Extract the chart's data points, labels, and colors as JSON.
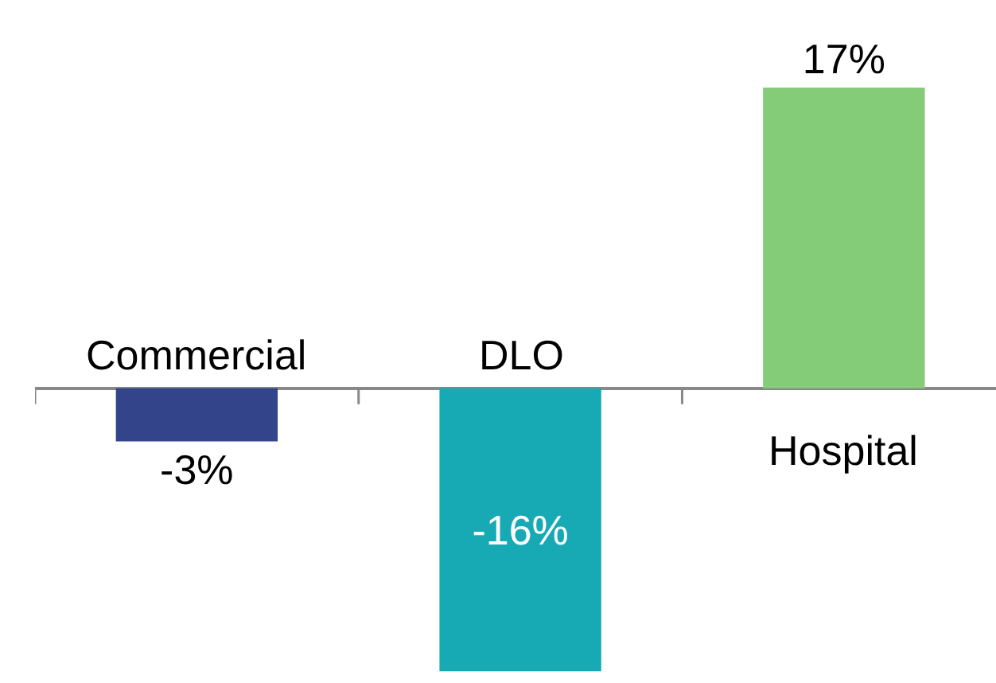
{
  "chart_data": {
    "type": "bar",
    "categories": [
      "Commercial",
      "DLO",
      "Hospital"
    ],
    "values": [
      -3,
      -16,
      17
    ],
    "colors": [
      "#33448a",
      "#17aab5",
      "#84cc78"
    ],
    "value_labels": [
      "-3%",
      "-16%",
      "17%"
    ],
    "data_labels": true
  }
}
